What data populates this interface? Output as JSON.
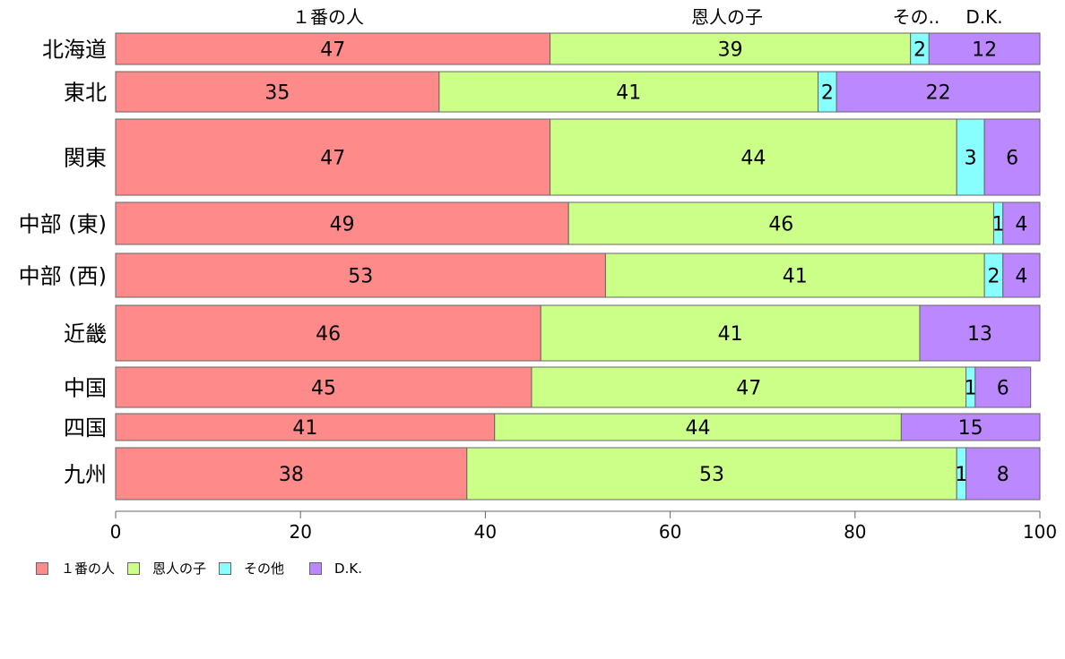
{
  "chart_data": {
    "type": "bar",
    "orientation": "horizontal",
    "stacked": true,
    "categories": [
      "北海道",
      "東北",
      "関東",
      "中部 (東)",
      "中部 (西)",
      "近畿",
      "中国",
      "四国",
      "九州"
    ],
    "series": [
      {
        "name": "１番の人",
        "color": "#FF8A8A",
        "values": [
          47,
          35,
          47,
          49,
          53,
          46,
          45,
          41,
          38
        ]
      },
      {
        "name": "恩人の子",
        "color": "#CCFF88",
        "values": [
          39,
          41,
          44,
          46,
          41,
          41,
          47,
          44,
          53
        ]
      },
      {
        "name": "その他",
        "color": "#88FFFF",
        "values": [
          2,
          2,
          3,
          1,
          2,
          0,
          1,
          0,
          1
        ]
      },
      {
        "name": "D.K.",
        "color": "#BB88FF",
        "values": [
          12,
          22,
          6,
          4,
          4,
          13,
          6,
          15,
          8
        ]
      }
    ],
    "data_labels": [
      [
        "47",
        "39",
        "2",
        "12"
      ],
      [
        "35",
        "41",
        "2",
        "22"
      ],
      [
        "47",
        "44",
        "3",
        "6"
      ],
      [
        "49",
        "46",
        "1",
        "4"
      ],
      [
        "53",
        "41",
        "2",
        "4"
      ],
      [
        "46",
        "41",
        "",
        "13"
      ],
      [
        "45",
        "47",
        "1",
        "6"
      ],
      [
        "41",
        "44",
        "",
        "15"
      ],
      [
        "38",
        "53",
        "1",
        "8"
      ]
    ],
    "top_labels": [
      "１番の人",
      "恩人の子",
      "その..",
      "D.K."
    ],
    "xlim": [
      0,
      100
    ],
    "x_ticks": [
      "0",
      "20",
      "40",
      "60",
      "80",
      "100"
    ],
    "xlabel": "",
    "ylabel": "",
    "title": "",
    "grid": false,
    "legend_position": "bottom-left"
  }
}
